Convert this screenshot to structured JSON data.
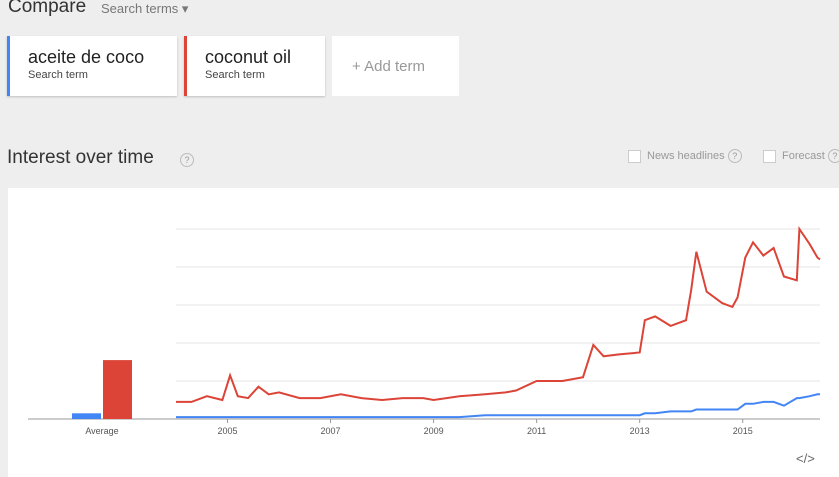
{
  "header": {
    "title": "Compare",
    "menu": "Search terms"
  },
  "terms": [
    {
      "name": "aceite de coco",
      "sub": "Search term",
      "color": "#4285f4"
    },
    {
      "name": "coconut oil",
      "sub": "Search term",
      "color": "#db4437"
    }
  ],
  "add_term": "+ Add term",
  "section": {
    "title": "Interest over time",
    "help": "?",
    "options": [
      "News headlines",
      "Forecast"
    ],
    "embed": "</>"
  },
  "chart_data": {
    "type": "line",
    "average_label": "Average",
    "averages": [
      3,
      31
    ],
    "xlim": [
      2004,
      2016.5
    ],
    "xticks": [
      2005,
      2007,
      2009,
      2011,
      2013,
      2015
    ],
    "ylim": [
      0,
      100
    ],
    "ygrid": [
      20,
      40,
      60,
      80,
      100
    ],
    "x": [
      2004.0,
      2004.3,
      2004.6,
      2004.9,
      2005.05,
      2005.2,
      2005.4,
      2005.6,
      2005.8,
      2006.0,
      2006.4,
      2006.8,
      2007.2,
      2007.6,
      2008.0,
      2008.4,
      2008.8,
      2009.0,
      2009.5,
      2010.0,
      2010.4,
      2010.6,
      2011.0,
      2011.5,
      2011.9,
      2012.1,
      2012.3,
      2012.6,
      2013.0,
      2013.1,
      2013.3,
      2013.6,
      2013.9,
      2014.0,
      2014.1,
      2014.3,
      2014.6,
      2014.8,
      2014.9,
      2015.05,
      2015.2,
      2015.4,
      2015.6,
      2015.8,
      2016.05,
      2016.1,
      2016.3,
      2016.45,
      2016.5
    ],
    "series": [
      {
        "name": "aceite de coco",
        "color": "#4285f4",
        "values": [
          1,
          1,
          1,
          1,
          1,
          1,
          1,
          1,
          1,
          1,
          1,
          1,
          1,
          1,
          1,
          1,
          1,
          1,
          1,
          2,
          2,
          2,
          2,
          2,
          2,
          2,
          2,
          2,
          2,
          3,
          3,
          4,
          4,
          4,
          5,
          5,
          5,
          5,
          5,
          8,
          8,
          9,
          9,
          7,
          11,
          11,
          12,
          13,
          13
        ]
      },
      {
        "name": "coconut oil",
        "color": "#db4437",
        "values": [
          9,
          9,
          12,
          10,
          23,
          12,
          11,
          17,
          13,
          14,
          11,
          11,
          13,
          11,
          10,
          11,
          11,
          10,
          12,
          13,
          14,
          15,
          20,
          20,
          22,
          39,
          33,
          34,
          35,
          52,
          54,
          49,
          52,
          68,
          88,
          67,
          61,
          59,
          64,
          85,
          93,
          86,
          90,
          75,
          73,
          100,
          92,
          85,
          84
        ]
      }
    ]
  }
}
